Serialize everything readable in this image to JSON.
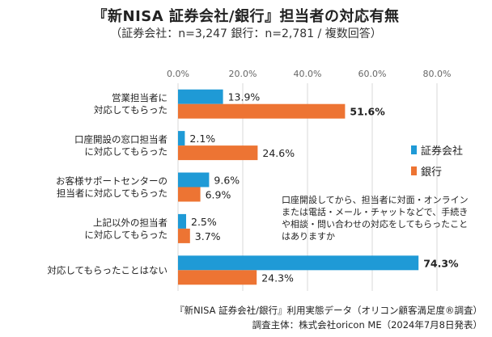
{
  "header": {
    "title": "『新NISA 証券会社/銀行』担当者の対応有無",
    "subtitle": "（証券会社：n=3,247 銀行：n=2,781 / 複数回答）"
  },
  "colors": {
    "securities": "#1f9ad6",
    "bank": "#ed7433",
    "grid": "#d9d9d9"
  },
  "chart_data": {
    "type": "bar",
    "orientation": "horizontal",
    "xlim": [
      0,
      80
    ],
    "ticks": [
      "0.0%",
      "20.0%",
      "40.0%",
      "60.0%",
      "80.0%"
    ],
    "tick_values": [
      0,
      20,
      40,
      60,
      80
    ],
    "grid": true,
    "legend_position": "right",
    "categories": [
      [
        "営業担当者に",
        "対応してもらった"
      ],
      [
        "口座開設の窓口担当者",
        "に対応してもらった"
      ],
      [
        "お客様サポートセンターの",
        "担当者に対応してもらった"
      ],
      [
        "上記以外の担当者",
        "に対応してもらった"
      ],
      [
        "対応してもらったことはない"
      ]
    ],
    "series": [
      {
        "name": "証券会社",
        "values": [
          13.9,
          2.1,
          9.6,
          2.5,
          74.3
        ],
        "labels": [
          "13.9%",
          "2.1%",
          "9.6%",
          "2.5%",
          "74.3%"
        ],
        "bold": [
          false,
          false,
          false,
          false,
          true
        ]
      },
      {
        "name": "銀行",
        "values": [
          51.6,
          24.6,
          6.9,
          3.7,
          24.3
        ],
        "labels": [
          "51.6%",
          "24.6%",
          "6.9%",
          "3.7%",
          "24.3%"
        ],
        "bold": [
          true,
          false,
          false,
          false,
          false
        ]
      }
    ]
  },
  "note": "口座開設してから、担当者に対面・オンラインまたは電話・メール・チャットなどで、手続きや相談・問い合わせの対応をしてもらったことはありますか",
  "footer": {
    "line1": "『新NISA 証券会社/銀行』利用実態データ（オリコン顧客満足度®調査）",
    "line2": "調査主体：株式会社oricon ME（2024年7月8日発表）"
  }
}
